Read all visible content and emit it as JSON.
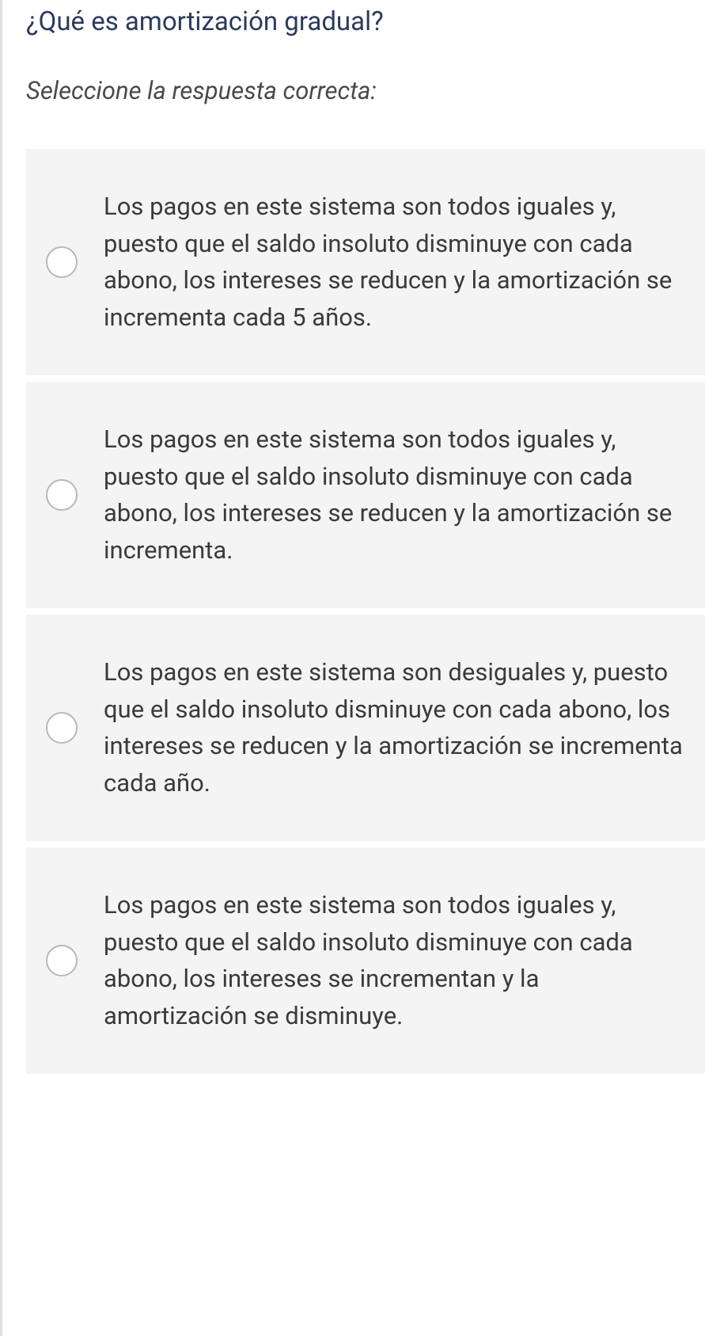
{
  "question": {
    "title": "¿Qué es amortización gradual?",
    "instruction": "Seleccione la respuesta correcta:"
  },
  "options": [
    {
      "text": "Los pagos en este sistema son todos iguales y, puesto que el saldo insoluto disminuye con cada abono, los intereses se reducen y la amortización se incrementa cada 5 años.",
      "selected": false
    },
    {
      "text": "Los pagos en este sistema son todos iguales y, puesto que el saldo insoluto disminuye con cada abono, los intereses se reducen y la amortización se incrementa.",
      "selected": false
    },
    {
      "text": "Los pagos en este sistema son desiguales y, puesto que el saldo insoluto disminuye con cada abono, los intereses se reducen y la amortización se incrementa cada año.",
      "selected": false
    },
    {
      "text": "Los pagos en este sistema son todos iguales y, puesto que el saldo insoluto disminuye con cada abono, los intereses se incrementan y la amortización se disminuye.",
      "selected": false
    }
  ],
  "styling": {
    "background_color": "#ffffff",
    "option_background": "#f4f4f4",
    "border_left_color": "#e0e0e0",
    "title_color": "#2a3b5c",
    "text_color": "#3a3a3a",
    "instruction_color": "#4a4a4a",
    "radio_border_color": "#b8b8b8",
    "title_fontsize": 33,
    "instruction_fontsize": 31,
    "option_fontsize": 31
  }
}
